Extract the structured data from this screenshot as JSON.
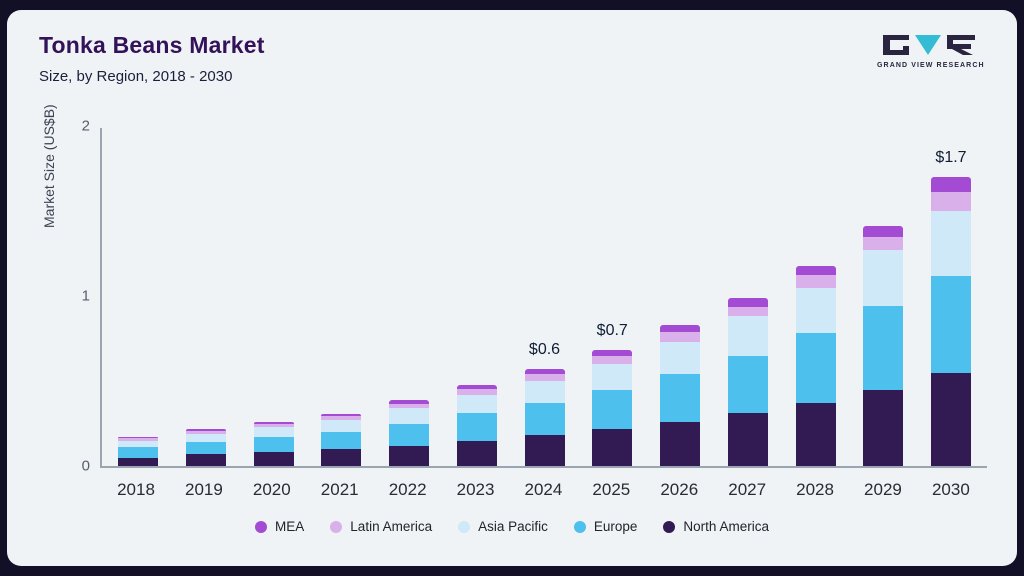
{
  "header": {
    "title": "Tonka Beans Market",
    "subtitle": "Size, by Region, 2018 - 2030"
  },
  "logo": {
    "text": "GRAND VIEW RESEARCH"
  },
  "chart_data": {
    "type": "bar",
    "stacked": true,
    "title": "Tonka Beans Market Size, by Region, 2018 - 2030",
    "ylabel": "Market Size (US$B)",
    "ylim": [
      0,
      2
    ],
    "yticks": [
      0,
      1,
      2
    ],
    "grid": false,
    "legend_position": "bottom",
    "categories": [
      "2018",
      "2019",
      "2020",
      "2021",
      "2022",
      "2023",
      "2024",
      "2025",
      "2026",
      "2027",
      "2028",
      "2029",
      "2030"
    ],
    "series": [
      {
        "name": "North America",
        "color": "#321b52",
        "values": [
          0.05,
          0.07,
          0.08,
          0.1,
          0.12,
          0.15,
          0.18,
          0.22,
          0.26,
          0.31,
          0.37,
          0.45,
          0.55
        ]
      },
      {
        "name": "Europe",
        "color": "#4dc0ee",
        "values": [
          0.06,
          0.07,
          0.09,
          0.1,
          0.13,
          0.16,
          0.19,
          0.23,
          0.28,
          0.34,
          0.41,
          0.49,
          0.57
        ]
      },
      {
        "name": "Asia Pacific",
        "color": "#cfe9f8",
        "values": [
          0.04,
          0.05,
          0.06,
          0.07,
          0.09,
          0.11,
          0.13,
          0.15,
          0.19,
          0.23,
          0.27,
          0.33,
          0.38
        ]
      },
      {
        "name": "Latin America",
        "color": "#d9b0ea",
        "values": [
          0.013,
          0.015,
          0.018,
          0.022,
          0.027,
          0.033,
          0.04,
          0.048,
          0.057,
          0.058,
          0.072,
          0.078,
          0.11
        ]
      },
      {
        "name": "MEA",
        "color": "#a44bd3",
        "values": [
          0.009,
          0.011,
          0.014,
          0.016,
          0.02,
          0.024,
          0.029,
          0.035,
          0.042,
          0.05,
          0.055,
          0.062,
          0.09
        ]
      }
    ],
    "annotations": [
      {
        "category": "2024",
        "text": "$0.6"
      },
      {
        "category": "2025",
        "text": "$0.7"
      },
      {
        "category": "2030",
        "text": "$1.7"
      }
    ]
  }
}
